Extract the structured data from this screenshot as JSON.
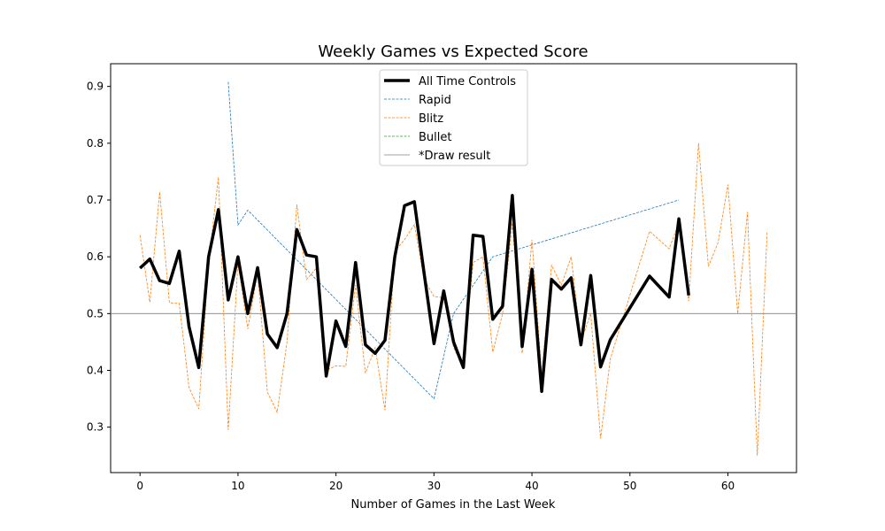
{
  "chart_data": {
    "type": "line",
    "title": "Weekly Games vs Expected Score",
    "xlabel": "Number of Games in the Last Week",
    "ylabel": "",
    "xlim": [
      -3,
      67
    ],
    "ylim": [
      0.22,
      0.94
    ],
    "xticks": [
      0,
      10,
      20,
      30,
      40,
      50,
      60
    ],
    "yticks": [
      0.3,
      0.4,
      0.5,
      0.6,
      0.7,
      0.8,
      0.9
    ],
    "legend_position": "top-center",
    "grid": false,
    "reference_line": {
      "name": "*Draw result",
      "y": 0.5,
      "color": "#808080"
    },
    "series": [
      {
        "name": "All Time Controls",
        "color": "#000000",
        "style": "solid-thick",
        "x": [
          0,
          1,
          2,
          3,
          4,
          5,
          6,
          7,
          8,
          9,
          10,
          11,
          12,
          13,
          14,
          15,
          16,
          17,
          18,
          19,
          20,
          21,
          22,
          23,
          24,
          25,
          26,
          27,
          28,
          29,
          30,
          31,
          32,
          33,
          34,
          35,
          36,
          37,
          38,
          39,
          40,
          41,
          42,
          43,
          44,
          45,
          46,
          47,
          48,
          52,
          54,
          55,
          56
        ],
        "y": [
          0.58,
          0.596,
          0.558,
          0.553,
          0.61,
          0.477,
          0.405,
          0.6,
          0.683,
          0.524,
          0.6,
          0.5,
          0.581,
          0.464,
          0.44,
          0.5,
          0.648,
          0.603,
          0.6,
          0.39,
          0.487,
          0.442,
          0.59,
          0.445,
          0.43,
          0.453,
          0.6,
          0.69,
          0.697,
          0.57,
          0.447,
          0.54,
          0.45,
          0.405,
          0.638,
          0.636,
          0.49,
          0.513,
          0.708,
          0.442,
          0.578,
          0.363,
          0.56,
          0.543,
          0.563,
          0.445,
          0.567,
          0.406,
          0.454,
          0.566,
          0.529,
          0.667,
          0.532
        ]
      },
      {
        "name": "Rapid",
        "color": "#1f77b4",
        "style": "dashed",
        "x": [
          9,
          10,
          11,
          30,
          32,
          36,
          55
        ],
        "y": [
          0.908,
          0.656,
          0.682,
          0.35,
          0.5,
          0.6,
          0.7
        ]
      },
      {
        "name": "Blitz",
        "color": "#ff7f0e",
        "style": "dashed",
        "x": [
          0,
          1,
          2,
          3,
          4,
          5,
          6,
          7,
          8,
          9,
          10,
          11,
          12,
          13,
          14,
          15,
          16,
          17,
          18,
          19,
          20,
          21,
          22,
          23,
          24,
          25,
          26,
          27,
          28,
          29,
          30,
          31,
          32,
          33,
          34,
          35,
          36,
          37,
          38,
          39,
          40,
          41,
          42,
          43,
          44,
          45,
          46,
          47,
          48,
          52,
          54,
          55,
          56,
          57,
          58,
          59,
          60,
          61,
          62,
          63,
          64
        ],
        "y": [
          0.638,
          0.52,
          0.714,
          0.519,
          0.518,
          0.37,
          0.332,
          0.59,
          0.74,
          0.295,
          0.59,
          0.473,
          0.573,
          0.362,
          0.326,
          0.45,
          0.692,
          0.56,
          0.58,
          0.4,
          0.408,
          0.407,
          0.55,
          0.395,
          0.44,
          0.33,
          0.61,
          0.63,
          0.657,
          0.56,
          0.53,
          0.528,
          0.44,
          0.405,
          0.59,
          0.6,
          0.432,
          0.5,
          0.66,
          0.43,
          0.63,
          0.39,
          0.585,
          0.55,
          0.6,
          0.45,
          0.5,
          0.28,
          0.42,
          0.645,
          0.614,
          0.66,
          0.522,
          0.8,
          0.583,
          0.625,
          0.727,
          0.5,
          0.679,
          0.25,
          0.644
        ]
      },
      {
        "name": "Bullet",
        "color": "#2ca02c",
        "style": "dashed",
        "x": [],
        "y": []
      }
    ]
  }
}
